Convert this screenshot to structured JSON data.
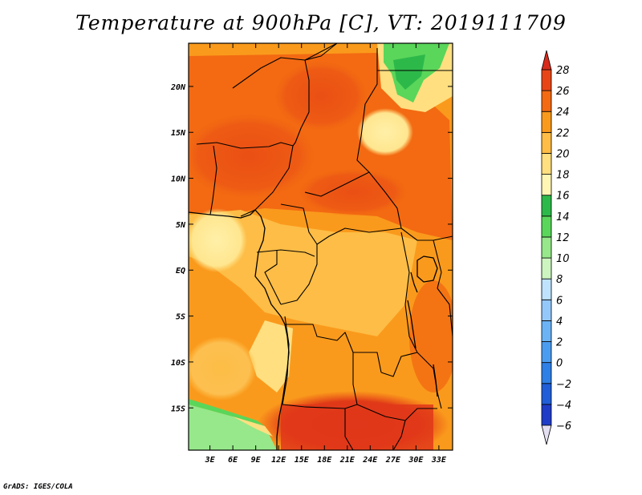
{
  "chart_data": {
    "type": "heatmap",
    "title": "Temperature at 900hPa [C], VT: 2019111709",
    "variable": "Temperature",
    "level": "900hPa",
    "units": "C",
    "valid_time": "2019111709",
    "x_ticks": [
      {
        "lon": 3,
        "label": "3E"
      },
      {
        "lon": 6,
        "label": "6E"
      },
      {
        "lon": 9,
        "label": "9E"
      },
      {
        "lon": 12,
        "label": "12E"
      },
      {
        "lon": 15,
        "label": "15E"
      },
      {
        "lon": 18,
        "label": "18E"
      },
      {
        "lon": 21,
        "label": "21E"
      },
      {
        "lon": 24,
        "label": "24E"
      },
      {
        "lon": 27,
        "label": "27E"
      },
      {
        "lon": 30,
        "label": "30E"
      },
      {
        "lon": 33,
        "label": "33E"
      }
    ],
    "y_ticks": [
      {
        "lat": 20,
        "label": "20N"
      },
      {
        "lat": 15,
        "label": "15N"
      },
      {
        "lat": 10,
        "label": "10N"
      },
      {
        "lat": 5,
        "label": "5N"
      },
      {
        "lat": 0,
        "label": "EQ"
      },
      {
        "lat": -5,
        "label": "5S"
      },
      {
        "lat": -10,
        "label": "10S"
      },
      {
        "lat": -15,
        "label": "15S"
      }
    ],
    "xlim": [
      0.2,
      34.8
    ],
    "ylim": [
      -19.6,
      24.7
    ],
    "colorbar": {
      "levels": [
        -6,
        -4,
        -2,
        0,
        2,
        4,
        6,
        8,
        10,
        12,
        14,
        16,
        18,
        20,
        22,
        24,
        26,
        28
      ],
      "labels": [
        "−6",
        "−4",
        "−2",
        "0",
        "2",
        "4",
        "6",
        "8",
        "10",
        "12",
        "14",
        "16",
        "18",
        "20",
        "22",
        "24",
        "26",
        "28"
      ],
      "colors": [
        "#1a0a6e",
        "#1e3cc8",
        "#1f5ed8",
        "#2e7fe6",
        "#4a9cf0",
        "#6bb3f5",
        "#94c8fa",
        "#bfe3fc",
        "#cdf5c0",
        "#96e88a",
        "#5ad65a",
        "#2db94a",
        "#fff6b4",
        "#ffdf80",
        "#fdbd46",
        "#fa9a1c",
        "#f36a12",
        "#e84517",
        "#d92b1b"
      ],
      "below_color": "#e4e0f2"
    },
    "field_features": [
      {
        "region": "Southern Africa 14S-18S, 15E-30E",
        "value": 28
      },
      {
        "region": "Sahel 10N-16N, 3E-20E",
        "value": 26
      },
      {
        "region": "Congo basin near equator",
        "value": 22
      },
      {
        "region": "Northeast corner near 22N 30E",
        "value": 14
      },
      {
        "region": "Southwest Atlantic coast near 15S",
        "value": 12
      },
      {
        "region": "Angola coast 8S-13S, 10E-13E",
        "value": 18
      }
    ]
  },
  "credit": "GrADS: IGES/COLA"
}
